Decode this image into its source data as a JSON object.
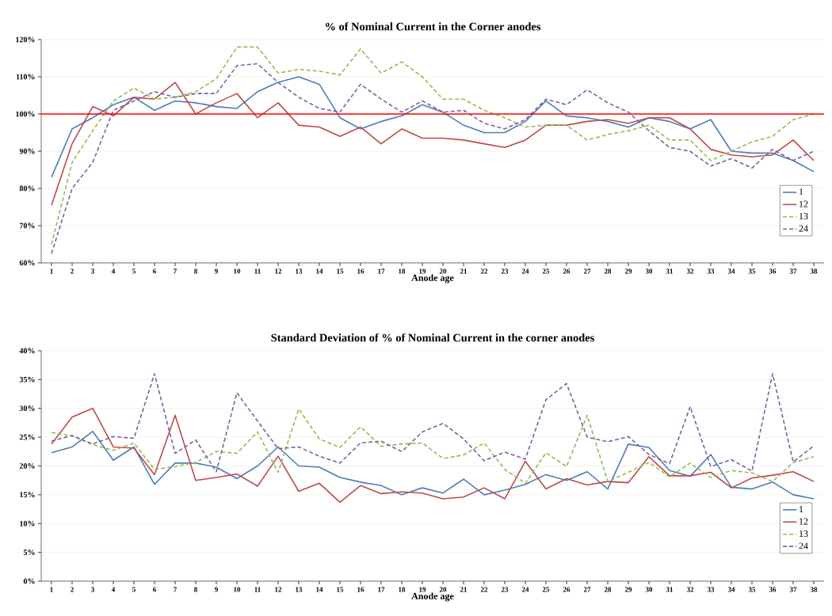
{
  "chart_data": [
    {
      "type": "line",
      "title": "% of Nominal Current in the Corner anodes",
      "xlabel": "Anode age",
      "categories": [
        "1",
        "2",
        "3",
        "4",
        "5",
        "6",
        "7",
        "8",
        "9",
        "10",
        "11",
        "12",
        "13",
        "14",
        "15",
        "16",
        "17",
        "18",
        "19",
        "20",
        "21",
        "22",
        "23",
        "24",
        "25",
        "26",
        "27",
        "28",
        "29",
        "30",
        "31",
        "32",
        "33",
        "34",
        "35",
        "36",
        "37",
        "38"
      ],
      "series": [
        {
          "name": "1",
          "color": "#4a7ebb",
          "line_style": "solid",
          "values": [
            83,
            96,
            99,
            102.5,
            104.5,
            101,
            103.5,
            103,
            102,
            101.5,
            106,
            108.5,
            110,
            108,
            99,
            96,
            98,
            99.5,
            102.5,
            100.5,
            97,
            95,
            95,
            98,
            103.5,
            99.5,
            99,
            98,
            96.5,
            99,
            98,
            96,
            98.5,
            90,
            89.5,
            89.5,
            87.5,
            84.5
          ]
        },
        {
          "name": "12",
          "color": "#be4b48",
          "line_style": "solid",
          "values": [
            75.5,
            92,
            102,
            99.5,
            104.5,
            104,
            108.5,
            100,
            103,
            105.5,
            99,
            103,
            97,
            96.5,
            94,
            96.5,
            92,
            96,
            93.5,
            93.5,
            93,
            92,
            91,
            93,
            97,
            97,
            98,
            98.5,
            97.5,
            99,
            99,
            96,
            90.5,
            89,
            88.5,
            89,
            93,
            87.5
          ]
        },
        {
          "name": "13",
          "color": "#98b954",
          "line_style": "dashed",
          "values": [
            65,
            87,
            95.5,
            103.5,
            107,
            104,
            104.5,
            106,
            109.5,
            118,
            118,
            111,
            112,
            111.5,
            110.5,
            117.5,
            111,
            114,
            110,
            104,
            104,
            101,
            99,
            96.5,
            97,
            97,
            93,
            94.5,
            95.5,
            97,
            93,
            93,
            87.5,
            90,
            92.5,
            94,
            98.5,
            100
          ]
        },
        {
          "name": "24",
          "color": "#7d60a0",
          "line_style": "dashed",
          "values": [
            62.5,
            80,
            87,
            101,
            103.5,
            106,
            104.5,
            105.5,
            105.5,
            113,
            113.5,
            108.5,
            104.5,
            101.5,
            100.5,
            108,
            104,
            100.5,
            103.5,
            100.5,
            101,
            97.5,
            96,
            98.5,
            104,
            102.5,
            106.5,
            103,
            100.5,
            95.5,
            91,
            90,
            86,
            88,
            85.5,
            90.5,
            87.5,
            90
          ]
        }
      ],
      "ylim": [
        60,
        120
      ],
      "yticks": [
        {
          "value": 60,
          "label": "60%"
        },
        {
          "value": 70,
          "label": "70%"
        },
        {
          "value": 80,
          "label": "80%"
        },
        {
          "value": 90,
          "label": "90%"
        },
        {
          "value": 100,
          "label": "100%"
        },
        {
          "value": 110,
          "label": "110%"
        },
        {
          "value": 120,
          "label": "120%"
        }
      ],
      "ref_lines": [
        {
          "axis": "y",
          "value": 100,
          "color": "#ff0000"
        }
      ],
      "grid": "y",
      "legend": "bottom right"
    },
    {
      "type": "line",
      "title": "Standard Deviation of % of Nominal Current in the corner anodes",
      "xlabel": "Anode age",
      "categories": [
        "1",
        "2",
        "3",
        "4",
        "5",
        "6",
        "7",
        "8",
        "9",
        "10",
        "11",
        "12",
        "13",
        "14",
        "15",
        "16",
        "17",
        "18",
        "19",
        "20",
        "21",
        "22",
        "23",
        "24",
        "25",
        "26",
        "27",
        "28",
        "29",
        "30",
        "31",
        "32",
        "33",
        "34",
        "35",
        "36",
        "37",
        "38"
      ],
      "series": [
        {
          "name": "1",
          "color": "#4a7ebb",
          "line_style": "solid",
          "values": [
            22.3,
            23.3,
            26,
            21,
            23.3,
            16.8,
            20.5,
            20.5,
            19.8,
            17.8,
            20,
            23.3,
            20,
            19.8,
            18,
            17.2,
            16.6,
            15,
            16.2,
            15.3,
            17.7,
            15,
            15.8,
            16.8,
            18.5,
            17.5,
            19,
            16,
            23.8,
            23.2,
            19.2,
            18.2,
            22,
            16.3,
            16,
            17.2,
            15,
            14.3
          ]
        },
        {
          "name": "12",
          "color": "#be4b48",
          "line_style": "solid",
          "values": [
            23.8,
            28.5,
            30,
            23.3,
            23.1,
            18.5,
            28.8,
            17.5,
            18,
            18.6,
            16.5,
            21.7,
            15.6,
            17,
            13.7,
            16.6,
            15.2,
            15.5,
            15.3,
            14.3,
            14.6,
            16.2,
            14.3,
            20.8,
            16,
            17.8,
            16.7,
            17.3,
            17.1,
            21.6,
            18.3,
            18.3,
            18.9,
            16.2,
            17.9,
            18.4,
            19,
            17.3
          ]
        },
        {
          "name": "13",
          "color": "#98b954",
          "line_style": "dashed",
          "values": [
            25.8,
            25.2,
            23.7,
            22.7,
            24,
            19.4,
            19.9,
            20.6,
            22.5,
            22.2,
            25.9,
            18.9,
            29.9,
            24.7,
            23.2,
            26.8,
            23.4,
            23.8,
            24,
            21.3,
            21.9,
            24,
            19.4,
            17,
            22.3,
            19.9,
            28.8,
            17.3,
            18.9,
            20.6,
            18.1,
            20.5,
            18,
            19.2,
            18.8,
            17.3,
            20.6,
            21.6
          ]
        },
        {
          "name": "24",
          "color": "#7d60a0",
          "line_style": "dashed",
          "values": [
            24.3,
            25.3,
            23.8,
            25.1,
            24.8,
            36,
            22.2,
            24.5,
            19,
            32.7,
            27.8,
            23,
            23.3,
            21.7,
            20.5,
            24,
            24.3,
            22.5,
            25.9,
            27.4,
            24.7,
            20.9,
            22.4,
            21.2,
            31.5,
            34.3,
            25,
            24.2,
            25.1,
            22,
            20.4,
            30.3,
            19.9,
            21.1,
            19.1,
            36,
            20.7,
            23.5
          ]
        }
      ],
      "ylim": [
        0,
        40
      ],
      "yticks": [
        {
          "value": 0,
          "label": "0%"
        },
        {
          "value": 5,
          "label": "5%"
        },
        {
          "value": 10,
          "label": "10%"
        },
        {
          "value": 15,
          "label": "15%"
        },
        {
          "value": 20,
          "label": "20%"
        },
        {
          "value": 25,
          "label": "25%"
        },
        {
          "value": 30,
          "label": "30%"
        },
        {
          "value": 35,
          "label": "35%"
        },
        {
          "value": 40,
          "label": "40%"
        }
      ],
      "grid": "y",
      "legend": "bottom right"
    }
  ]
}
